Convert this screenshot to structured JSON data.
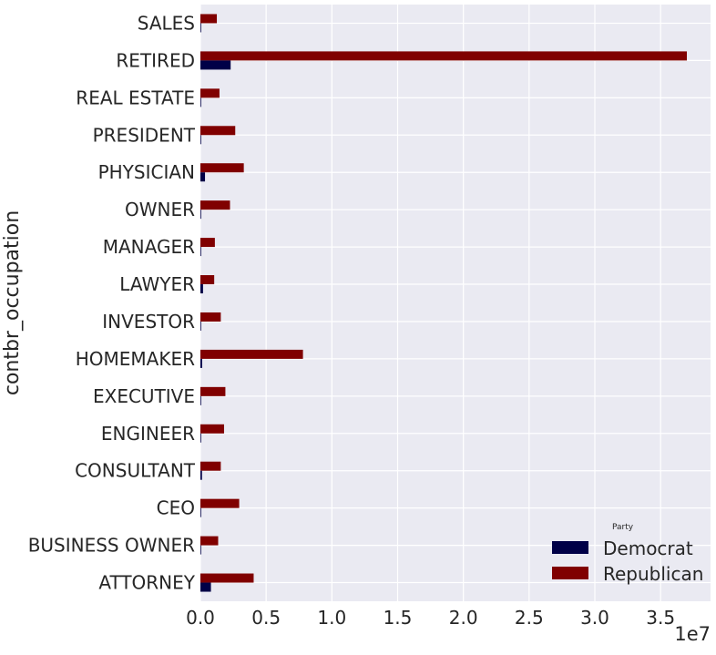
{
  "chart_data": {
    "type": "bar",
    "orientation": "horizontal",
    "ylabel": "contbr_occupation",
    "xlabel": "",
    "x_offset_label": "1e7",
    "x_scale": 10000000,
    "xlim": [
      0,
      38800000
    ],
    "x_ticks": [
      0,
      5000000,
      10000000,
      15000000,
      20000000,
      25000000,
      30000000,
      35000000
    ],
    "x_tick_labels": [
      "0.0",
      "0.5",
      "1.0",
      "1.5",
      "2.0",
      "2.5",
      "3.0",
      "3.5"
    ],
    "grid": true,
    "categories": [
      "SALES",
      "RETIRED",
      "REAL ESTATE",
      "PRESIDENT",
      "PHYSICIAN",
      "OWNER",
      "MANAGER",
      "LAWYER",
      "INVESTOR",
      "HOMEMAKER",
      "EXECUTIVE",
      "ENGINEER",
      "CONSULTANT",
      "CEO",
      "BUSINESS OWNER",
      "ATTORNEY"
    ],
    "series": [
      {
        "name": "Democrat",
        "color": "#000047",
        "values": [
          20000,
          2300000,
          20000,
          40000,
          350000,
          40000,
          30000,
          200000,
          40000,
          130000,
          40000,
          40000,
          120000,
          20000,
          10000,
          800000
        ]
      },
      {
        "name": "Republican",
        "color": "#800000",
        "values": [
          1250000,
          37000000,
          1450000,
          2650000,
          3300000,
          2250000,
          1100000,
          1050000,
          1550000,
          7800000,
          1900000,
          1800000,
          1550000,
          2950000,
          1350000,
          4050000
        ]
      }
    ],
    "legend": {
      "title": "Party",
      "placement": "lower-right",
      "entries": [
        "Democrat",
        "Republican"
      ]
    },
    "colors": {
      "background": "#eaeaf2",
      "grid": "#ffffff",
      "democrat": "#000047",
      "republican": "#800000"
    }
  }
}
